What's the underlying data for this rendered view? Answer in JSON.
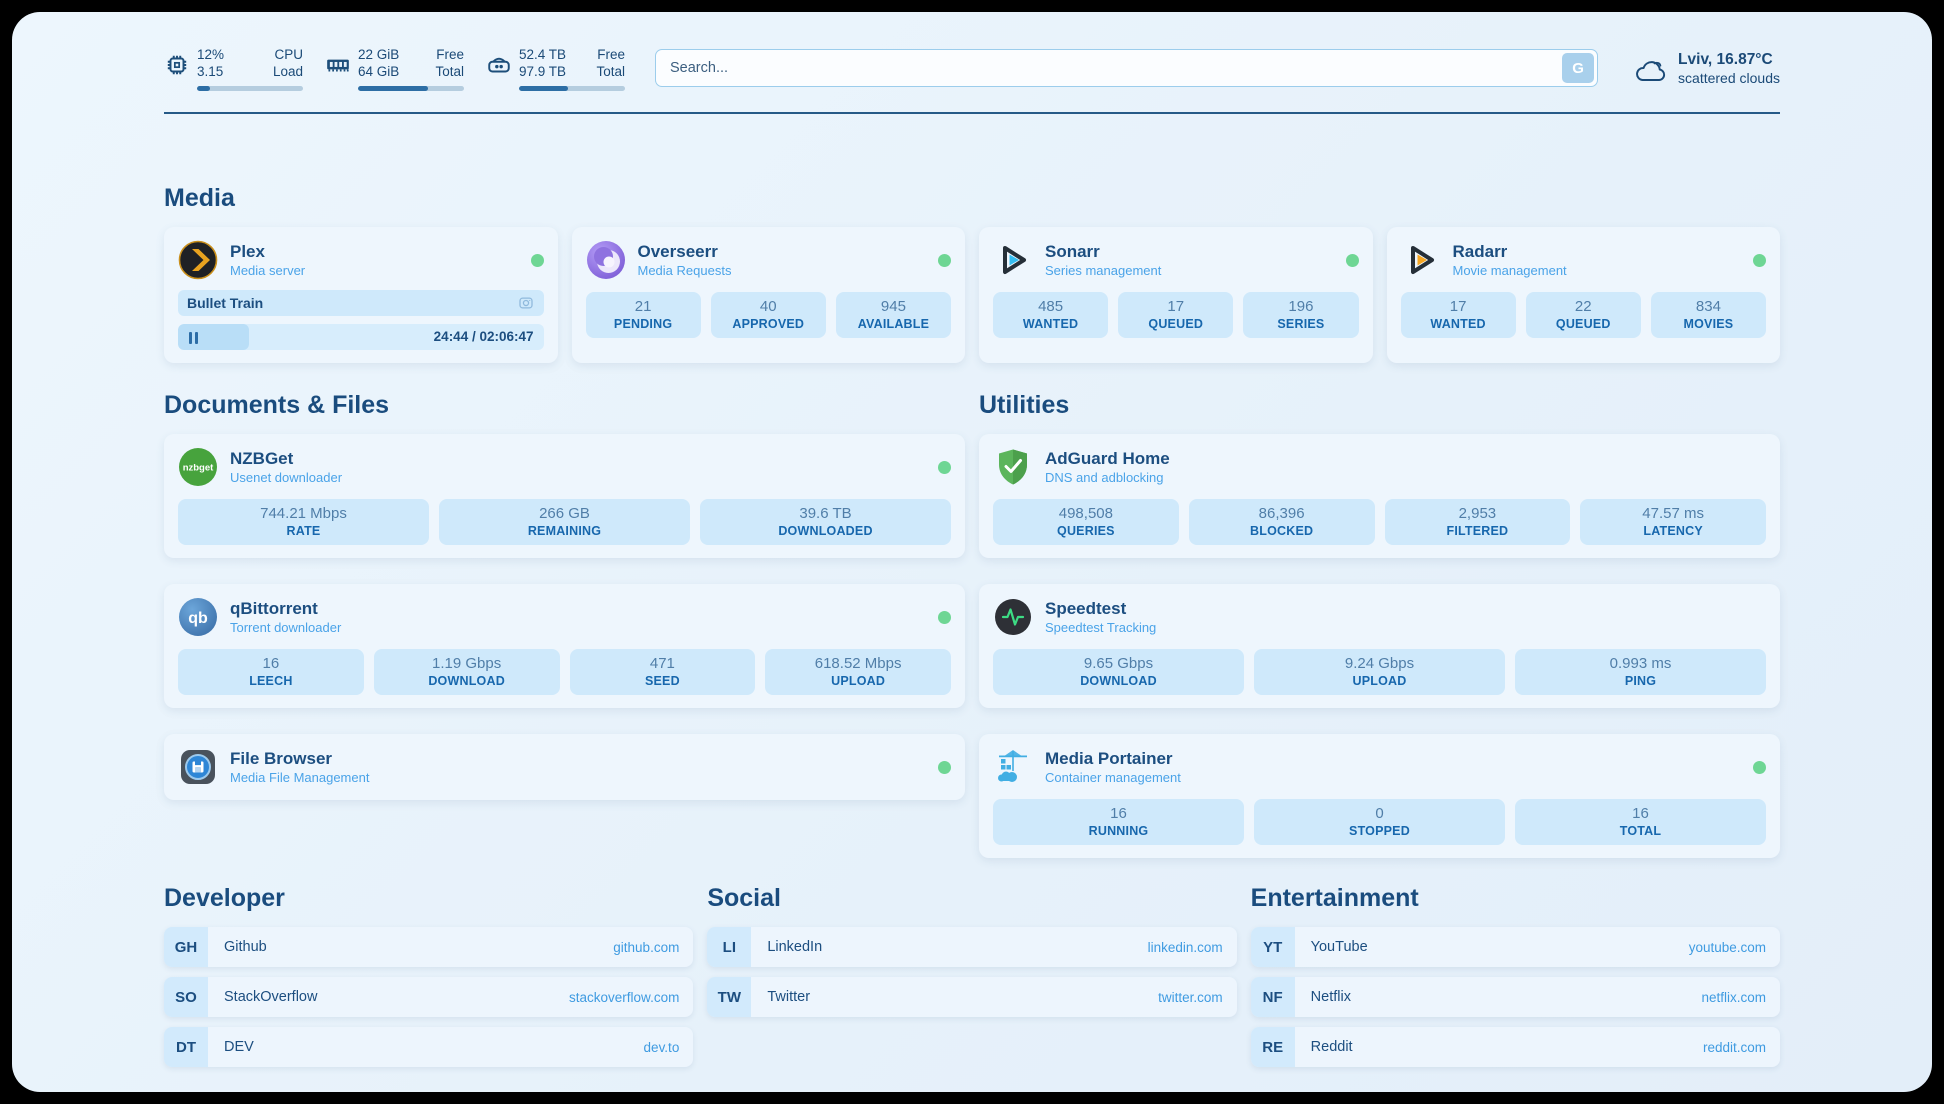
{
  "header": {
    "system": [
      {
        "icon": "cpu-icon",
        "value_top": "12%",
        "value_bottom": "3.15",
        "label_top": "CPU",
        "label_bottom": "Load",
        "progress": 12
      },
      {
        "icon": "ram-icon",
        "value_top": "22 GiB",
        "value_bottom": "64 GiB",
        "label_top": "Free",
        "label_bottom": "Total",
        "progress": 66
      },
      {
        "icon": "disk-icon",
        "value_top": "52.4 TB",
        "value_bottom": "97.9 TB",
        "label_top": "Free",
        "label_bottom": "Total",
        "progress": 46
      }
    ],
    "search": {
      "placeholder": "Search...",
      "button_label": "G"
    },
    "weather": {
      "location_temp": "Lviv, 16.87°C",
      "condition": "scattered clouds"
    }
  },
  "media": {
    "title": "Media",
    "plex": {
      "name": "Plex",
      "subtitle": "Media server",
      "online": true,
      "now_playing": "Bullet Train",
      "time": "24:44 / 02:06:47",
      "progress": 19.5
    },
    "overseerr": {
      "name": "Overseerr",
      "subtitle": "Media Requests",
      "online": true,
      "stats": [
        {
          "value": "21",
          "label": "PENDING"
        },
        {
          "value": "40",
          "label": "APPROVED"
        },
        {
          "value": "945",
          "label": "AVAILABLE"
        }
      ]
    },
    "sonarr": {
      "name": "Sonarr",
      "subtitle": "Series management",
      "online": true,
      "stats": [
        {
          "value": "485",
          "label": "WANTED"
        },
        {
          "value": "17",
          "label": "QUEUED"
        },
        {
          "value": "196",
          "label": "SERIES"
        }
      ]
    },
    "radarr": {
      "name": "Radarr",
      "subtitle": "Movie management",
      "online": true,
      "stats": [
        {
          "value": "17",
          "label": "WANTED"
        },
        {
          "value": "22",
          "label": "QUEUED"
        },
        {
          "value": "834",
          "label": "MOVIES"
        }
      ]
    }
  },
  "documents": {
    "title": "Documents & Files",
    "nzbget": {
      "name": "NZBGet",
      "subtitle": "Usenet downloader",
      "online": true,
      "stats": [
        {
          "value": "744.21 Mbps",
          "label": "RATE"
        },
        {
          "value": "266 GB",
          "label": "REMAINING"
        },
        {
          "value": "39.6 TB",
          "label": "DOWNLOADED"
        }
      ]
    },
    "qbittorrent": {
      "name": "qBittorrent",
      "subtitle": "Torrent downloader",
      "online": true,
      "stats": [
        {
          "value": "16",
          "label": "LEECH"
        },
        {
          "value": "1.19 Gbps",
          "label": "DOWNLOAD"
        },
        {
          "value": "471",
          "label": "SEED"
        },
        {
          "value": "618.52 Mbps",
          "label": "UPLOAD"
        }
      ]
    },
    "filebrowser": {
      "name": "File Browser",
      "subtitle": "Media File Management",
      "online": true
    }
  },
  "utilities": {
    "title": "Utilities",
    "adguard": {
      "name": "AdGuard Home",
      "subtitle": "DNS and adblocking",
      "online": false,
      "stats": [
        {
          "value": "498,508",
          "label": "QUERIES"
        },
        {
          "value": "86,396",
          "label": "BLOCKED"
        },
        {
          "value": "2,953",
          "label": "FILTERED"
        },
        {
          "value": "47.57 ms",
          "label": "LATENCY"
        }
      ]
    },
    "speedtest": {
      "name": "Speedtest",
      "subtitle": "Speedtest Tracking",
      "online": false,
      "stats": [
        {
          "value": "9.65 Gbps",
          "label": "DOWNLOAD"
        },
        {
          "value": "9.24 Gbps",
          "label": "UPLOAD"
        },
        {
          "value": "0.993 ms",
          "label": "PING"
        }
      ]
    },
    "portainer": {
      "name": "Media Portainer",
      "subtitle": "Container management",
      "online": true,
      "stats": [
        {
          "value": "16",
          "label": "RUNNING"
        },
        {
          "value": "0",
          "label": "STOPPED"
        },
        {
          "value": "16",
          "label": "TOTAL"
        }
      ]
    }
  },
  "bookmarks": [
    {
      "title": "Developer",
      "links": [
        {
          "abbr": "GH",
          "name": "Github",
          "url": "github.com"
        },
        {
          "abbr": "SO",
          "name": "StackOverflow",
          "url": "stackoverflow.com"
        },
        {
          "abbr": "DT",
          "name": "DEV",
          "url": "dev.to"
        }
      ]
    },
    {
      "title": "Social",
      "links": [
        {
          "abbr": "LI",
          "name": "LinkedIn",
          "url": "linkedin.com"
        },
        {
          "abbr": "TW",
          "name": "Twitter",
          "url": "twitter.com"
        }
      ]
    },
    {
      "title": "Entertainment",
      "links": [
        {
          "abbr": "YT",
          "name": "YouTube",
          "url": "youtube.com"
        },
        {
          "abbr": "NF",
          "name": "Netflix",
          "url": "netflix.com"
        },
        {
          "abbr": "RE",
          "name": "Reddit",
          "url": "reddit.com"
        }
      ]
    }
  ],
  "colors": {
    "status_online": "#6ed694",
    "accent": "#3f9be1",
    "heading": "#1a4c7e",
    "tile_bg": "#cfe9fb"
  }
}
